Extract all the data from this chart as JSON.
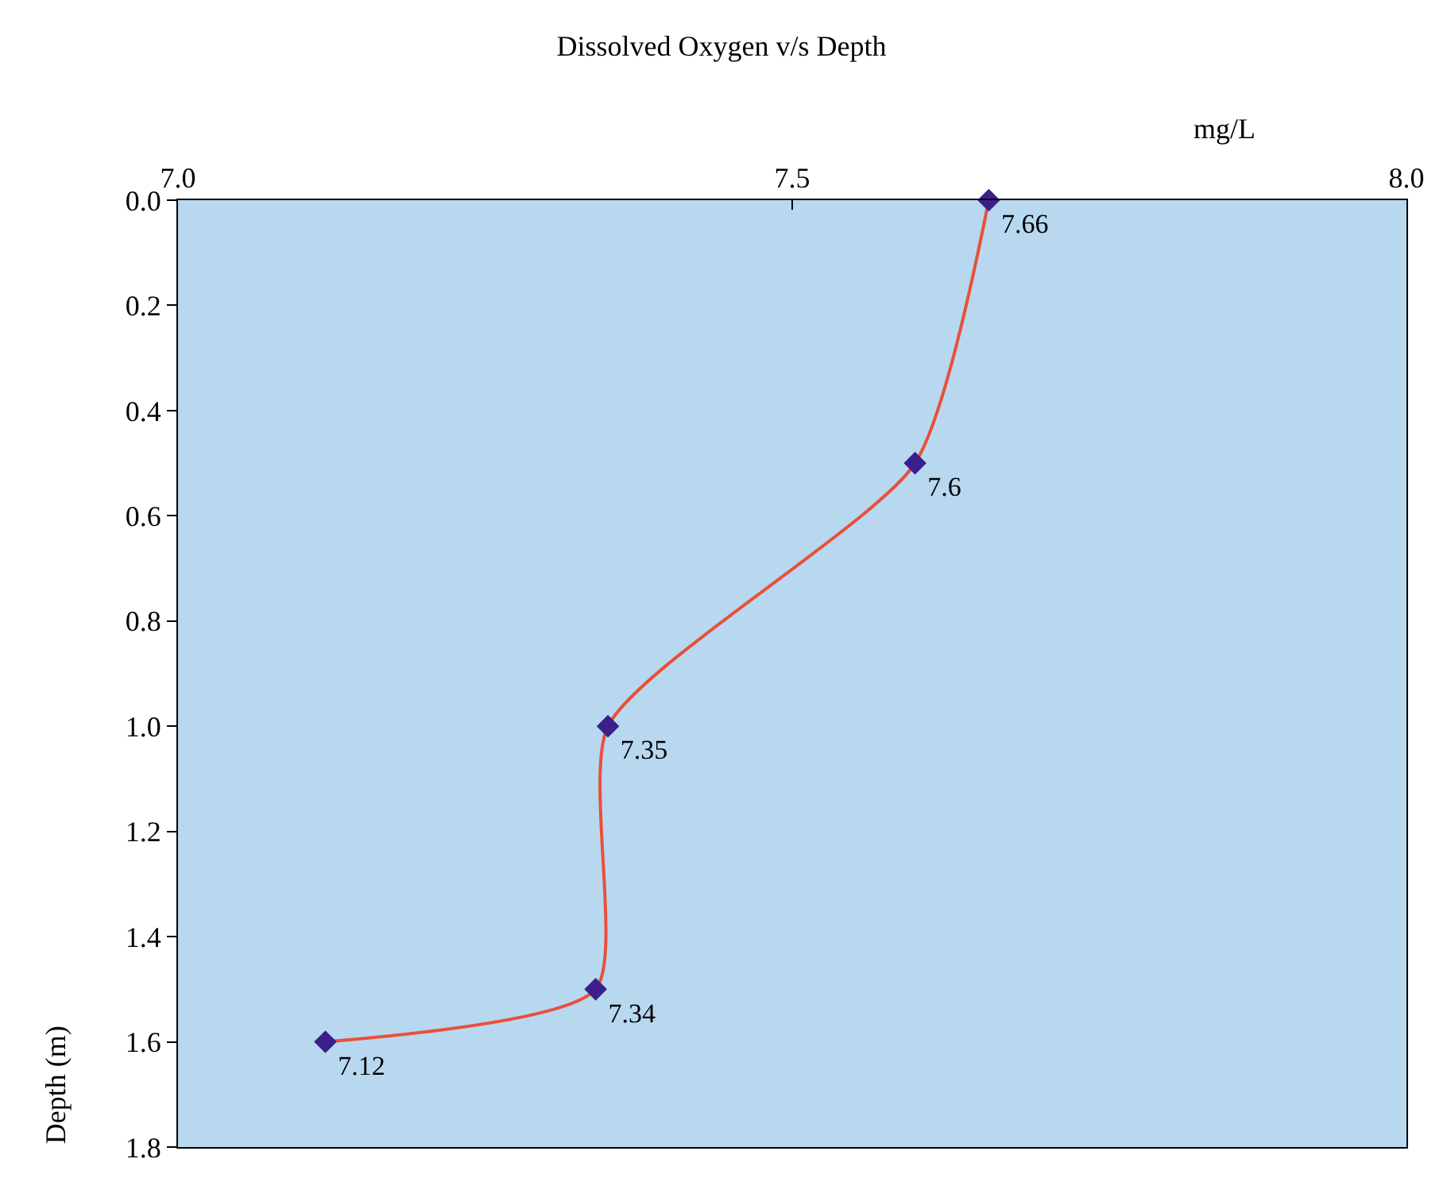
{
  "chart_data": {
    "type": "line",
    "title": "Dissolved Oxygen v/s Depth",
    "xlabel": "mg/L",
    "ylabel": "Depth (m)",
    "orientation": "horizontal",
    "x": [
      0,
      0.5,
      1.0,
      1.5,
      1.6
    ],
    "series": [
      {
        "color": "#e8503a",
        "values": [
          7.66,
          7.6,
          7.35,
          7.34,
          7.12
        ]
      }
    ],
    "data_labels": true,
    "xlim": [
      7.0,
      8.0
    ],
    "xticks": [
      {
        "value": 7.0,
        "label": "7.0"
      },
      {
        "value": 7.5,
        "label": "7.5"
      },
      {
        "value": 8.0,
        "label": "8.0"
      }
    ],
    "ylim": [
      1.8,
      0
    ],
    "yticks": [
      {
        "value": 0,
        "label": "0.0"
      },
      {
        "value": 0.2,
        "label": "0.2"
      },
      {
        "value": 0.4,
        "label": "0.4"
      },
      {
        "value": 0.6,
        "label": "0.6"
      },
      {
        "value": 0.8,
        "label": "0.8"
      },
      {
        "value": 1.0,
        "label": "1.0"
      },
      {
        "value": 1.2,
        "label": "1.2"
      },
      {
        "value": 1.4,
        "label": "1.4"
      },
      {
        "value": 1.6,
        "label": "1.6"
      },
      {
        "value": 1.8,
        "label": "1.8"
      }
    ],
    "marker": "diamond",
    "line_style": "solid",
    "grid": false,
    "legend": false
  }
}
